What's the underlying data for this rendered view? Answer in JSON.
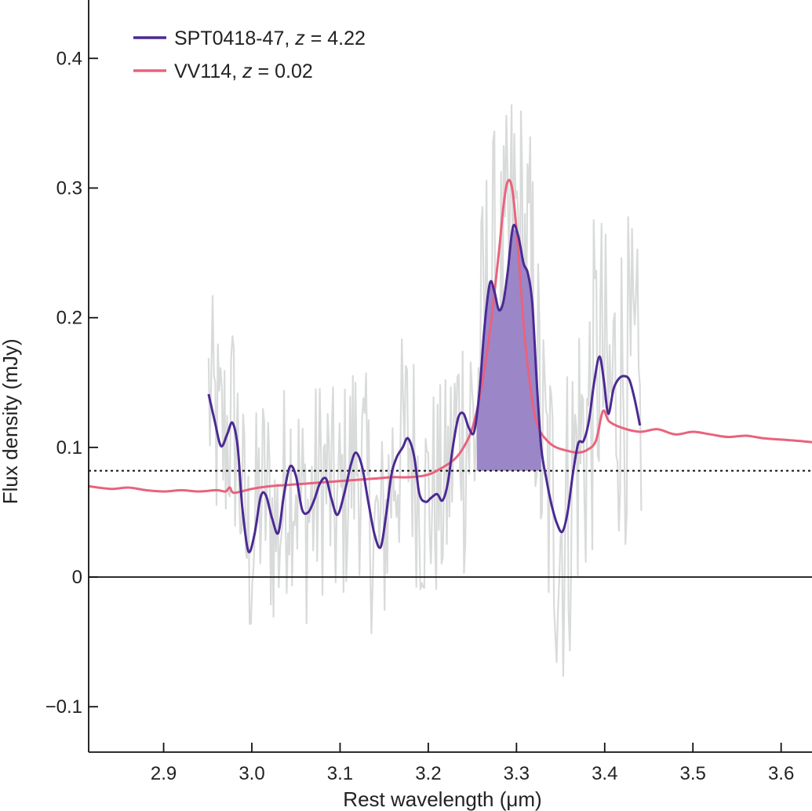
{
  "chart_data": {
    "type": "line",
    "xlabel": "Rest wavelength (μm)",
    "ylabel": "Flux density (mJy)",
    "xlim": [
      2.815,
      3.635
    ],
    "ylim": [
      -0.135,
      0.445
    ],
    "xticks": [
      2.9,
      3.0,
      3.1,
      3.2,
      3.3,
      3.4,
      3.5,
      3.6
    ],
    "xtick_labels": [
      "2.9",
      "3.0",
      "3.1",
      "3.2",
      "3.3",
      "3.4",
      "3.5",
      "3.6"
    ],
    "yticks": [
      -0.1,
      0,
      0.1,
      0.2,
      0.3,
      0.4
    ],
    "ytick_labels": [
      "−0.1",
      "0",
      "0.1",
      "0.2",
      "0.3",
      "0.4"
    ],
    "grid": false,
    "legend_position": "top-left",
    "continuum_level": 0.082,
    "shaded_band": {
      "x_start": 3.255,
      "x_end": 3.328,
      "color": "#9b86c8"
    },
    "series": [
      {
        "name": "SPT0418-47",
        "legend_label": "SPT0418-47, ",
        "legend_z": "z",
        "legend_value": " = 4.22",
        "color": "#4b2a92",
        "x": [
          2.951,
          2.958,
          2.965,
          2.972,
          2.978,
          2.984,
          2.989,
          2.996,
          3.003,
          3.01,
          3.016,
          3.023,
          3.03,
          3.036,
          3.043,
          3.05,
          3.057,
          3.064,
          3.071,
          3.077,
          3.084,
          3.09,
          3.097,
          3.105,
          3.112,
          3.118,
          3.125,
          3.132,
          3.139,
          3.146,
          3.152,
          3.158,
          3.164,
          3.171,
          3.177,
          3.184,
          3.19,
          3.197,
          3.203,
          3.21,
          3.216,
          3.222,
          3.228,
          3.234,
          3.24,
          3.246,
          3.252,
          3.258,
          3.264,
          3.27,
          3.275,
          3.28,
          3.285,
          3.29,
          3.296,
          3.302,
          3.308,
          3.313,
          3.318,
          3.323,
          3.328,
          3.334,
          3.34,
          3.346,
          3.352,
          3.358,
          3.364,
          3.37,
          3.376,
          3.382,
          3.388,
          3.394,
          3.399,
          3.404,
          3.41,
          3.416,
          3.422,
          3.428,
          3.434,
          3.44
        ],
        "y": [
          0.141,
          0.12,
          0.101,
          0.11,
          0.119,
          0.1,
          0.055,
          0.02,
          0.033,
          0.062,
          0.063,
          0.045,
          0.034,
          0.062,
          0.085,
          0.078,
          0.052,
          0.05,
          0.06,
          0.072,
          0.076,
          0.061,
          0.048,
          0.065,
          0.086,
          0.096,
          0.085,
          0.058,
          0.033,
          0.023,
          0.047,
          0.078,
          0.092,
          0.1,
          0.107,
          0.093,
          0.064,
          0.058,
          0.061,
          0.064,
          0.059,
          0.072,
          0.101,
          0.123,
          0.126,
          0.115,
          0.112,
          0.143,
          0.195,
          0.227,
          0.22,
          0.206,
          0.212,
          0.235,
          0.27,
          0.263,
          0.242,
          0.234,
          0.21,
          0.15,
          0.1,
          0.075,
          0.055,
          0.041,
          0.035,
          0.05,
          0.08,
          0.103,
          0.105,
          0.12,
          0.15,
          0.17,
          0.152,
          0.126,
          0.145,
          0.153,
          0.155,
          0.152,
          0.137,
          0.117
        ]
      },
      {
        "name": "VV114",
        "legend_label": "VV114, ",
        "legend_z": "z",
        "legend_value": " = 0.02",
        "color": "#e8637c",
        "x": [
          2.815,
          2.84,
          2.86,
          2.88,
          2.9,
          2.92,
          2.94,
          2.96,
          2.97,
          2.975,
          2.98,
          3.0,
          3.02,
          3.04,
          3.06,
          3.08,
          3.1,
          3.12,
          3.14,
          3.16,
          3.18,
          3.2,
          3.215,
          3.23,
          3.24,
          3.25,
          3.26,
          3.27,
          3.28,
          3.285,
          3.29,
          3.295,
          3.3,
          3.305,
          3.31,
          3.318,
          3.325,
          3.335,
          3.345,
          3.36,
          3.37,
          3.38,
          3.39,
          3.398,
          3.405,
          3.42,
          3.44,
          3.46,
          3.48,
          3.5,
          3.52,
          3.54,
          3.56,
          3.58,
          3.6,
          3.62,
          3.635
        ],
        "y": [
          0.07,
          0.068,
          0.069,
          0.067,
          0.066,
          0.067,
          0.066,
          0.067,
          0.066,
          0.069,
          0.065,
          0.068,
          0.07,
          0.071,
          0.072,
          0.073,
          0.074,
          0.075,
          0.076,
          0.077,
          0.077,
          0.079,
          0.084,
          0.091,
          0.1,
          0.115,
          0.145,
          0.19,
          0.25,
          0.285,
          0.305,
          0.3,
          0.268,
          0.222,
          0.18,
          0.135,
          0.115,
          0.105,
          0.1,
          0.097,
          0.096,
          0.098,
          0.105,
          0.128,
          0.12,
          0.115,
          0.112,
          0.114,
          0.11,
          0.112,
          0.11,
          0.108,
          0.109,
          0.107,
          0.106,
          0.105,
          0.104
        ]
      }
    ],
    "raw_band": {
      "color": "#d9dbdb",
      "x_start": 2.951,
      "x_end": 3.442,
      "step": 0.0015
    }
  }
}
